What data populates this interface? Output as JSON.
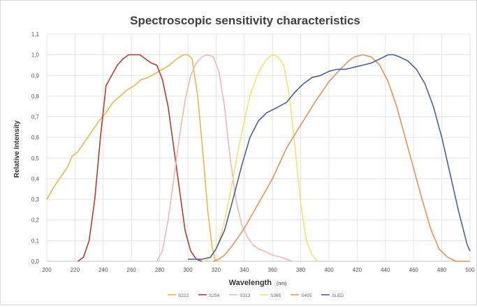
{
  "chart_data": {
    "type": "line",
    "title": "Spectroscopic sensitivity characteristics",
    "xlabel": "Wavelength",
    "xlabel_unit": "(nm)",
    "ylabel": "Relative Intensity",
    "xlim": [
      200,
      500
    ],
    "ylim": [
      0,
      1.1
    ],
    "x_ticks": [
      "200",
      "220",
      "240",
      "260",
      "280",
      "300",
      "320",
      "340",
      "360",
      "380",
      "400",
      "420",
      "440",
      "460",
      "480",
      "500"
    ],
    "y_ticks": [
      "0,0",
      "0,1",
      "0,2",
      "0,3",
      "0,4",
      "0,5",
      "0,6",
      "0,7",
      "0,8",
      "0,9",
      "1,0",
      "1,1"
    ],
    "grid": true,
    "legend_position": "bottom",
    "series": [
      {
        "name": "S222",
        "color": "#e8ba45",
        "points": [
          [
            200,
            0.3
          ],
          [
            205,
            0.36
          ],
          [
            210,
            0.41
          ],
          [
            215,
            0.46
          ],
          [
            218,
            0.51
          ],
          [
            222,
            0.53
          ],
          [
            227,
            0.58
          ],
          [
            232,
            0.63
          ],
          [
            237,
            0.68
          ],
          [
            242,
            0.72
          ],
          [
            247,
            0.77
          ],
          [
            252,
            0.8
          ],
          [
            257,
            0.83
          ],
          [
            262,
            0.85
          ],
          [
            267,
            0.88
          ],
          [
            272,
            0.89
          ],
          [
            277,
            0.91
          ],
          [
            282,
            0.93
          ],
          [
            287,
            0.95
          ],
          [
            292,
            0.98
          ],
          [
            297,
            1.0
          ],
          [
            300,
            1.0
          ],
          [
            303,
            0.98
          ],
          [
            307,
            0.8
          ],
          [
            311,
            0.5
          ],
          [
            314,
            0.25
          ],
          [
            317,
            0.08
          ],
          [
            319,
            0.01
          ],
          [
            321,
            0.0
          ]
        ]
      },
      {
        "name": "S254",
        "color": "#c0392b",
        "points": [
          [
            222,
            0.0
          ],
          [
            226,
            0.02
          ],
          [
            230,
            0.1
          ],
          [
            234,
            0.3
          ],
          [
            238,
            0.6
          ],
          [
            242,
            0.85
          ],
          [
            246,
            0.9
          ],
          [
            250,
            0.95
          ],
          [
            254,
            0.98
          ],
          [
            258,
            1.0
          ],
          [
            262,
            1.0
          ],
          [
            266,
            1.0
          ],
          [
            270,
            0.98
          ],
          [
            274,
            0.96
          ],
          [
            278,
            0.95
          ],
          [
            282,
            0.88
          ],
          [
            286,
            0.75
          ],
          [
            290,
            0.55
          ],
          [
            294,
            0.35
          ],
          [
            298,
            0.15
          ],
          [
            302,
            0.05
          ],
          [
            306,
            0.01
          ],
          [
            310,
            0.0
          ]
        ]
      },
      {
        "name": "S313",
        "color": "#f3b7b2",
        "points": [
          [
            278,
            0.0
          ],
          [
            282,
            0.05
          ],
          [
            286,
            0.2
          ],
          [
            290,
            0.4
          ],
          [
            294,
            0.6
          ],
          [
            298,
            0.78
          ],
          [
            302,
            0.9
          ],
          [
            306,
            0.96
          ],
          [
            310,
            0.99
          ],
          [
            314,
            1.0
          ],
          [
            318,
            0.99
          ],
          [
            322,
            0.92
          ],
          [
            326,
            0.75
          ],
          [
            330,
            0.5
          ],
          [
            334,
            0.3
          ],
          [
            338,
            0.18
          ],
          [
            342,
            0.12
          ],
          [
            346,
            0.08
          ],
          [
            350,
            0.06
          ],
          [
            354,
            0.05
          ],
          [
            360,
            0.03
          ],
          [
            366,
            0.02
          ],
          [
            370,
            0.01
          ],
          [
            374,
            0.0
          ]
        ]
      },
      {
        "name": "S365",
        "color": "#efe56a",
        "points": [
          [
            312,
            0.0
          ],
          [
            316,
            0.02
          ],
          [
            320,
            0.06
          ],
          [
            324,
            0.14
          ],
          [
            328,
            0.26
          ],
          [
            332,
            0.4
          ],
          [
            336,
            0.55
          ],
          [
            340,
            0.68
          ],
          [
            344,
            0.8
          ],
          [
            348,
            0.88
          ],
          [
            352,
            0.94
          ],
          [
            356,
            0.98
          ],
          [
            360,
            1.0
          ],
          [
            364,
            0.99
          ],
          [
            368,
            0.95
          ],
          [
            372,
            0.8
          ],
          [
            376,
            0.55
          ],
          [
            380,
            0.28
          ],
          [
            384,
            0.1
          ],
          [
            388,
            0.03
          ],
          [
            392,
            0.0
          ]
        ]
      },
      {
        "name": "S405",
        "color": "#ec9058",
        "points": [
          [
            318,
            0.0
          ],
          [
            322,
            0.01
          ],
          [
            326,
            0.03
          ],
          [
            332,
            0.08
          ],
          [
            340,
            0.16
          ],
          [
            350,
            0.28
          ],
          [
            360,
            0.4
          ],
          [
            370,
            0.55
          ],
          [
            380,
            0.66
          ],
          [
            390,
            0.77
          ],
          [
            400,
            0.87
          ],
          [
            408,
            0.93
          ],
          [
            414,
            0.97
          ],
          [
            418,
            0.99
          ],
          [
            424,
            1.0
          ],
          [
            430,
            0.99
          ],
          [
            436,
            0.95
          ],
          [
            442,
            0.87
          ],
          [
            448,
            0.75
          ],
          [
            454,
            0.6
          ],
          [
            460,
            0.45
          ],
          [
            466,
            0.3
          ],
          [
            472,
            0.16
          ],
          [
            478,
            0.06
          ],
          [
            484,
            0.02
          ],
          [
            490,
            0.0
          ],
          [
            500,
            0.0
          ]
        ]
      },
      {
        "name": "SLED",
        "color": "#4a5f9e",
        "points": [
          [
            300,
            0.01
          ],
          [
            310,
            0.01
          ],
          [
            316,
            0.02
          ],
          [
            320,
            0.06
          ],
          [
            326,
            0.15
          ],
          [
            332,
            0.3
          ],
          [
            338,
            0.46
          ],
          [
            344,
            0.6
          ],
          [
            350,
            0.68
          ],
          [
            356,
            0.72
          ],
          [
            362,
            0.74
          ],
          [
            370,
            0.77
          ],
          [
            376,
            0.82
          ],
          [
            382,
            0.86
          ],
          [
            388,
            0.89
          ],
          [
            394,
            0.9
          ],
          [
            400,
            0.92
          ],
          [
            406,
            0.93
          ],
          [
            412,
            0.93
          ],
          [
            418,
            0.94
          ],
          [
            424,
            0.95
          ],
          [
            430,
            0.96
          ],
          [
            436,
            0.98
          ],
          [
            442,
            1.0
          ],
          [
            446,
            1.0
          ],
          [
            450,
            0.99
          ],
          [
            456,
            0.97
          ],
          [
            462,
            0.93
          ],
          [
            468,
            0.86
          ],
          [
            474,
            0.75
          ],
          [
            480,
            0.6
          ],
          [
            486,
            0.42
          ],
          [
            492,
            0.24
          ],
          [
            498,
            0.08
          ],
          [
            500,
            0.05
          ]
        ]
      }
    ]
  }
}
